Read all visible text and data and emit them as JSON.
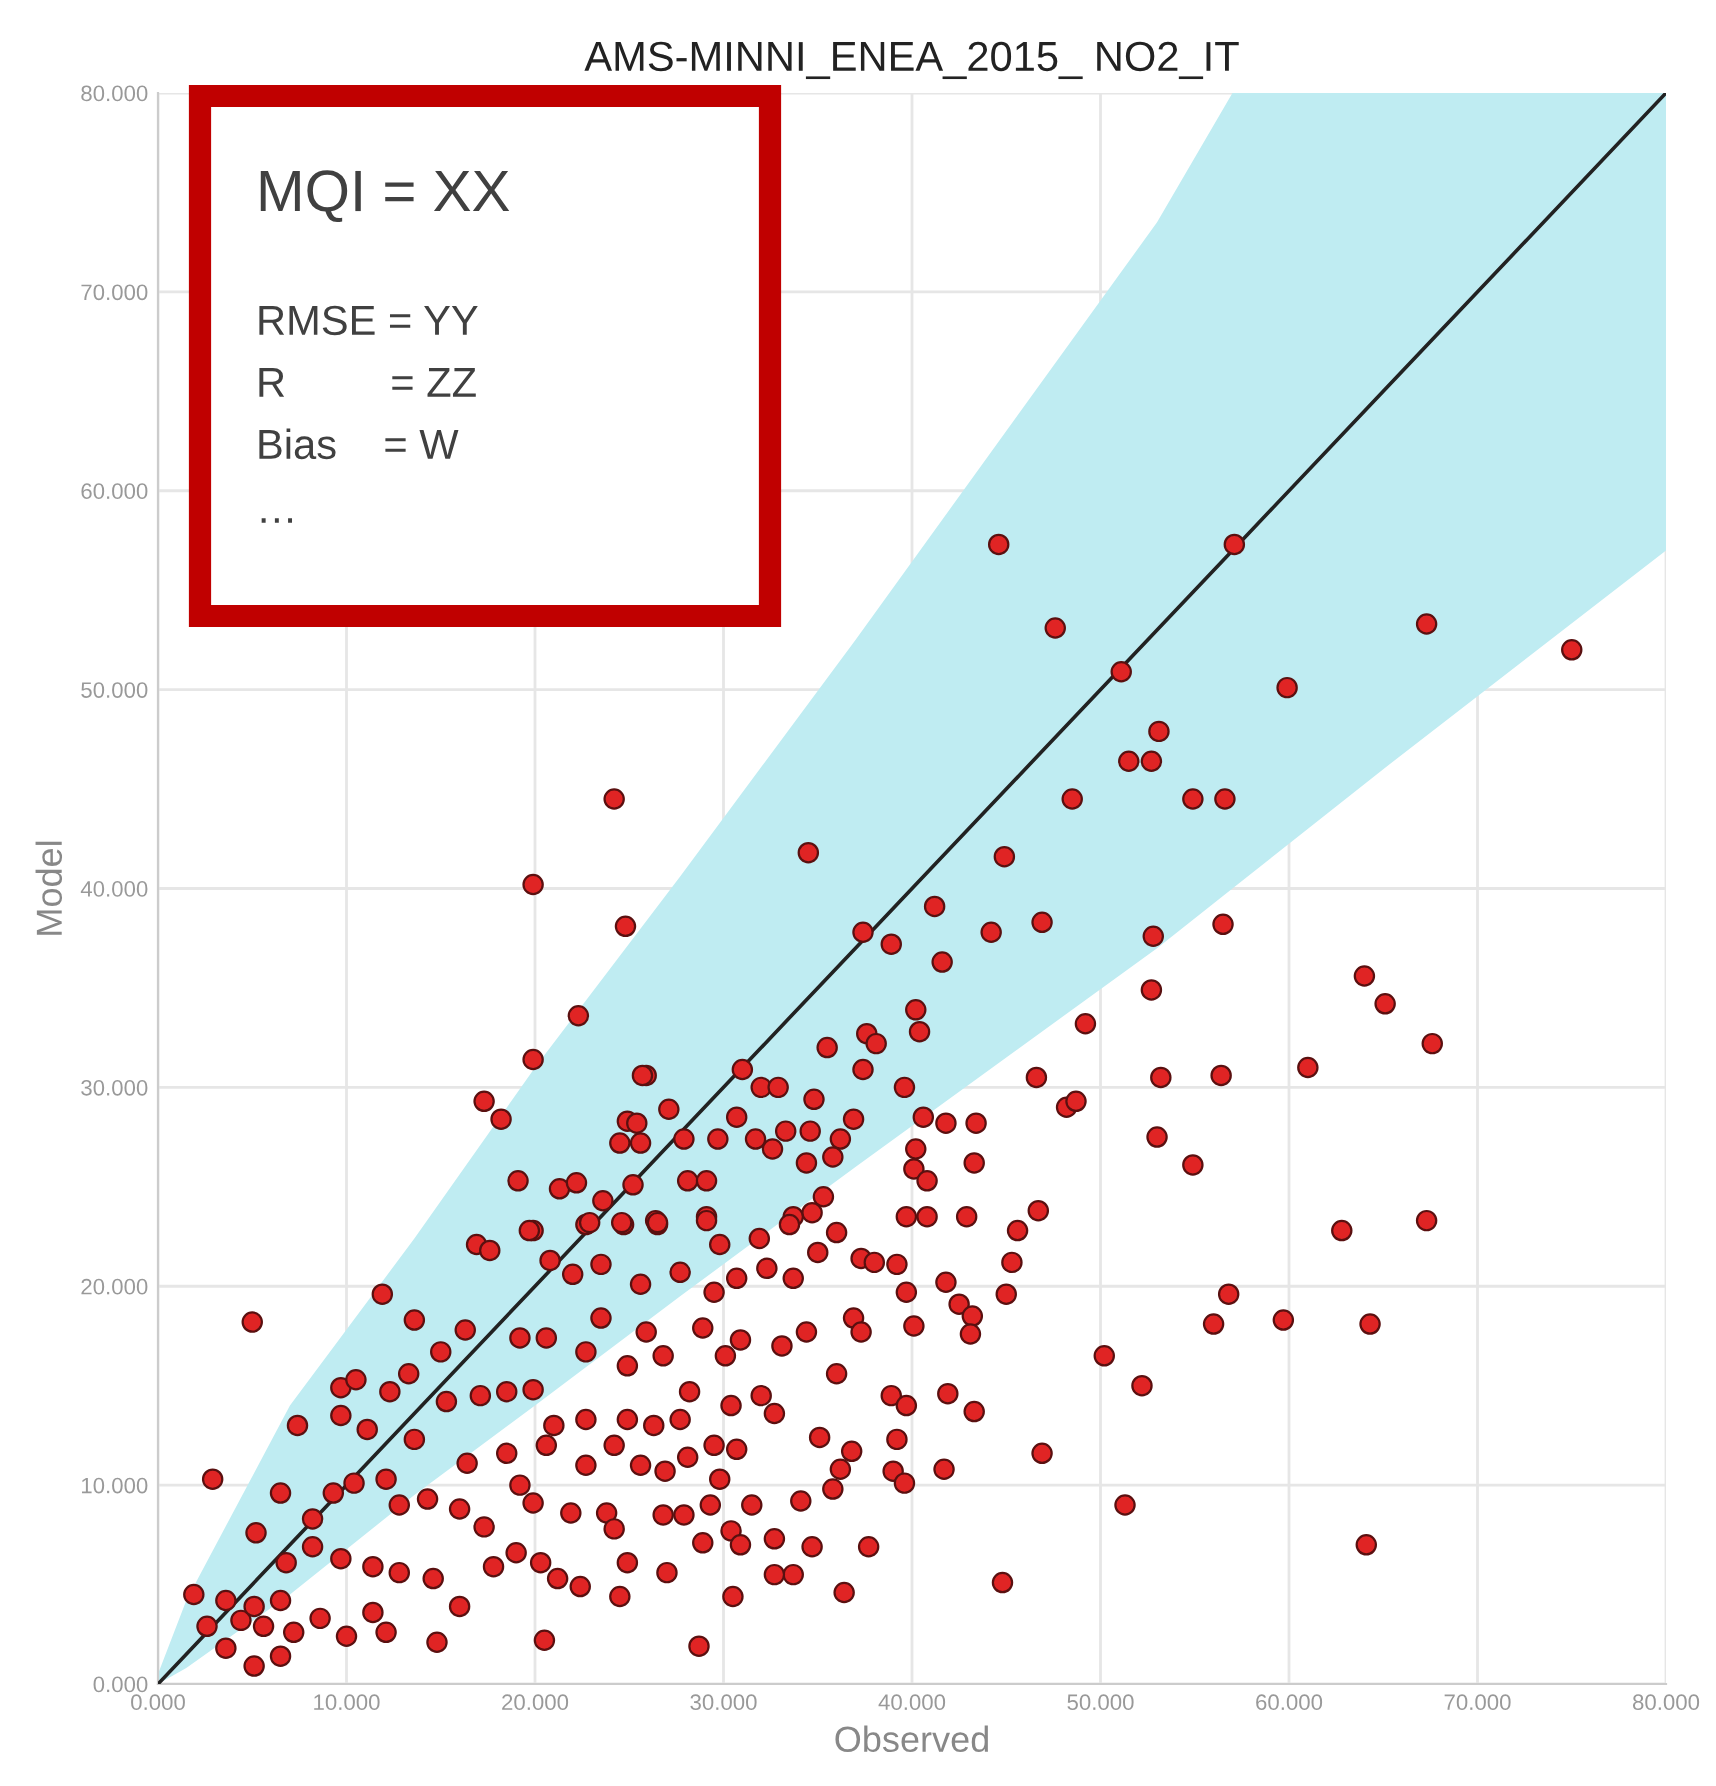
{
  "chart_data": {
    "type": "scatter",
    "title": "AMS-MINNI_ENEA_2015_ NO2_IT",
    "xlabel": "Observed",
    "ylabel": "Model",
    "xlim": [
      0,
      80
    ],
    "ylim": [
      0,
      80
    ],
    "xticks": [
      {
        "value": 0,
        "label": "0.000"
      },
      {
        "value": 10,
        "label": "10.000"
      },
      {
        "value": 20,
        "label": "20.000"
      },
      {
        "value": 30,
        "label": "30.000"
      },
      {
        "value": 40,
        "label": "40.000"
      },
      {
        "value": 50,
        "label": "50.000"
      },
      {
        "value": 60,
        "label": "60.000"
      },
      {
        "value": 70,
        "label": "70.000"
      },
      {
        "value": 80,
        "label": "80.000"
      }
    ],
    "yticks": [
      {
        "value": 0,
        "label": "0.000"
      },
      {
        "value": 10,
        "label": "10.000"
      },
      {
        "value": 20,
        "label": "20.000"
      },
      {
        "value": 30,
        "label": "30.000"
      },
      {
        "value": 40,
        "label": "40.000"
      },
      {
        "value": 50,
        "label": "50.000"
      },
      {
        "value": 60,
        "label": "60.000"
      },
      {
        "value": 70,
        "label": "70.000"
      },
      {
        "value": 80,
        "label": "80.000"
      }
    ],
    "grid": true,
    "annotations": [
      "MQI = XX",
      "RMSE = YY",
      "R         = ZZ",
      "Bias    = W",
      "…"
    ],
    "series": [
      {
        "type": "line",
        "color": "#222222",
        "line_style": "solid",
        "x": [
          0,
          1.5,
          7,
          13.6,
          20,
          27.7,
          37,
          53,
          57,
          65,
          80
        ],
        "values": [
          0,
          1.5,
          7,
          13.6,
          20,
          27.7,
          37,
          53,
          57,
          65,
          80
        ],
        "lower": [
          0,
          0.8,
          4.5,
          9.5,
          14,
          19.5,
          26,
          37,
          40,
          46,
          57
        ],
        "upper": [
          0.5,
          4.2,
          14,
          22.4,
          31,
          40.6,
          52.5,
          73.5,
          80,
          80,
          80
        ]
      },
      {
        "type": "scatter",
        "color": "#e02424",
        "marker": "circle",
        "x": [
          44.6,
          57.1,
          47.6,
          67.3,
          75.0,
          59.9,
          53.1,
          51.5,
          52.7,
          54.9,
          56.6,
          51.1,
          52.8,
          56.5,
          52.7,
          64.0,
          65.1,
          67.6,
          53.2,
          56.4,
          61.0,
          53.0,
          54.9,
          62.8,
          67.3,
          56.8,
          56.0,
          59.7,
          64.3,
          52.2,
          51.3,
          64.1,
          34.5,
          44.9,
          48.5,
          41.2,
          37.4,
          38.9,
          44.2,
          46.9,
          41.6,
          49.2,
          40.2,
          40.4,
          37.6,
          38.1,
          35.5,
          37.4,
          39.6,
          31.0,
          32.0,
          32.9,
          34.8,
          27.1,
          25.9,
          46.6,
          48.2,
          48.7,
          30.7,
          36.9,
          40.6,
          41.8,
          43.4,
          27.9,
          29.7,
          31.7,
          33.3,
          34.6,
          36.2,
          32.6,
          34.4,
          35.8,
          40.2,
          40.1,
          40.8,
          43.3,
          28.1,
          29.1,
          35.3,
          26.4,
          29.1,
          33.7,
          34.7,
          39.7,
          40.8,
          42.9,
          45.6,
          46.7,
          45.3,
          45.0,
          41.8,
          42.5,
          43.2,
          43.1,
          39.7,
          40.1,
          39.2,
          36.9,
          37.3,
          34.4,
          33.1,
          36.0,
          41.9,
          43.3,
          38.9,
          39.7,
          39.2,
          46.9,
          50.2,
          41.7,
          39.0,
          39.6,
          35.1,
          36.2,
          35.8,
          36.8,
          37.7,
          44.8,
          36.4,
          34.1,
          34.7,
          32.7,
          33.7,
          32.7,
          31.5,
          30.4,
          30.9,
          28.9,
          30.5,
          28.7,
          27.0,
          26.8,
          27.9,
          29.3,
          29.8,
          26.9,
          30.9,
          30.1,
          32.0,
          32.7,
          30.7,
          29.5,
          28.1,
          28.2,
          30.4,
          27.7,
          26.3,
          36.0,
          37.3,
          38.0,
          35.0,
          33.7,
          32.3,
          31.9,
          33.5,
          29.8,
          29.1,
          29.5,
          30.7,
          27.7,
          26.5,
          28.9,
          26.8,
          5.0,
          2.9,
          11.9,
          13.6,
          16.9,
          17.6,
          19.9,
          20.8,
          22.7,
          24.7,
          9.7,
          10.5,
          12.3,
          13.3,
          15.0,
          16.3,
          7.4,
          9.7,
          11.1,
          13.6,
          15.3,
          17.1,
          18.5,
          19.9,
          19.2,
          20.6,
          22.0,
          23.5,
          25.6,
          23.5,
          25.9,
          22.7,
          24.9,
          21.0,
          22.7,
          24.9,
          24.2,
          25.6,
          22.7,
          20.6,
          18.5,
          16.4,
          19.2,
          19.9,
          21.9,
          23.8,
          24.2,
          24.9,
          22.4,
          24.5,
          20.3,
          21.2,
          19.0,
          17.8,
          16.0,
          17.3,
          14.3,
          12.8,
          12.1,
          10.4,
          9.3,
          8.2,
          6.5,
          5.2,
          6.8,
          8.2,
          9.7,
          11.4,
          12.8,
          14.6,
          16.0,
          14.8,
          12.1,
          11.4,
          10.0,
          8.6,
          7.2,
          6.5,
          6.5,
          5.1,
          3.6,
          2.6,
          1.9,
          3.6,
          4.4,
          5.1,
          5.6,
          20.5,
          24.2,
          19.9,
          24.8,
          22.3,
          19.9,
          25.7,
          17.3,
          18.2,
          24.9,
          25.4,
          24.5,
          25.6,
          19.1,
          21.3,
          22.2,
          25.2,
          23.6,
          22.9,
          24.6,
          26.5,
          19.7
        ],
        "values": [
          57.3,
          57.3,
          53.1,
          53.3,
          52.0,
          50.1,
          47.9,
          46.4,
          46.4,
          44.5,
          44.5,
          50.9,
          37.6,
          38.2,
          34.9,
          35.6,
          34.2,
          32.2,
          30.5,
          30.6,
          31.0,
          27.5,
          26.1,
          22.8,
          23.3,
          19.6,
          18.1,
          18.3,
          18.1,
          15.0,
          9.0,
          7.0,
          41.8,
          41.6,
          44.5,
          39.1,
          37.8,
          37.2,
          37.8,
          38.3,
          36.3,
          33.2,
          33.9,
          32.8,
          32.7,
          32.2,
          32.0,
          30.9,
          30.0,
          30.9,
          30.0,
          30.0,
          29.4,
          28.9,
          30.6,
          30.5,
          29.0,
          29.3,
          28.5,
          28.4,
          28.5,
          28.2,
          28.2,
          27.4,
          27.4,
          27.4,
          27.8,
          27.8,
          27.4,
          26.9,
          26.2,
          26.5,
          26.9,
          25.9,
          25.3,
          26.2,
          25.3,
          25.3,
          24.5,
          23.3,
          23.5,
          23.5,
          23.7,
          23.5,
          23.5,
          23.5,
          22.8,
          23.8,
          21.2,
          19.6,
          20.2,
          19.1,
          18.5,
          17.6,
          19.7,
          18.0,
          21.1,
          18.4,
          17.7,
          17.7,
          17.0,
          15.6,
          14.6,
          13.7,
          14.5,
          14.0,
          12.3,
          11.6,
          16.5,
          10.8,
          10.7,
          10.1,
          12.4,
          10.8,
          9.8,
          11.7,
          6.9,
          5.1,
          4.6,
          9.2,
          6.9,
          7.3,
          5.5,
          5.5,
          9.0,
          7.7,
          7.0,
          7.1,
          4.4,
          1.9,
          5.6,
          8.5,
          8.5,
          9.0,
          10.3,
          10.7,
          17.3,
          16.5,
          14.5,
          13.6,
          11.8,
          12.0,
          11.4,
          14.7,
          14.0,
          13.3,
          13.0,
          22.7,
          21.4,
          21.2,
          21.7,
          20.4,
          20.9,
          22.4,
          23.1,
          22.1,
          23.3,
          19.7,
          20.4,
          20.7,
          23.1,
          17.9,
          16.5,
          18.2,
          10.3,
          19.6,
          18.3,
          22.1,
          21.8,
          22.8,
          21.3,
          23.1,
          23.1,
          14.9,
          15.3,
          14.7,
          15.6,
          16.7,
          17.8,
          13.0,
          13.5,
          12.8,
          12.3,
          14.2,
          14.5,
          14.7,
          14.8,
          17.4,
          17.4,
          20.6,
          21.1,
          20.1,
          18.4,
          17.7,
          16.7,
          16.0,
          13.0,
          13.3,
          13.3,
          12.0,
          11.0,
          11.0,
          12.0,
          11.6,
          11.1,
          10.0,
          9.1,
          8.6,
          8.6,
          7.8,
          6.1,
          4.9,
          4.4,
          6.1,
          5.3,
          6.6,
          5.9,
          8.8,
          7.9,
          9.3,
          9.0,
          10.3,
          10.1,
          9.6,
          8.3,
          9.6,
          7.6,
          6.1,
          6.9,
          6.3,
          5.9,
          5.6,
          5.3,
          3.9,
          2.1,
          2.6,
          3.6,
          2.4,
          3.3,
          2.6,
          4.2,
          1.4,
          0.9,
          1.8,
          2.9,
          4.5,
          4.2,
          3.2,
          3.9,
          2.9,
          2.2,
          44.5,
          40.2,
          38.1,
          33.6,
          31.4,
          30.6,
          29.3,
          28.4,
          28.3,
          28.2,
          27.2,
          27.2,
          25.3,
          24.9,
          25.2,
          25.1,
          24.3,
          23.2,
          23.2,
          23.2,
          22.8
        ]
      }
    ]
  }
}
